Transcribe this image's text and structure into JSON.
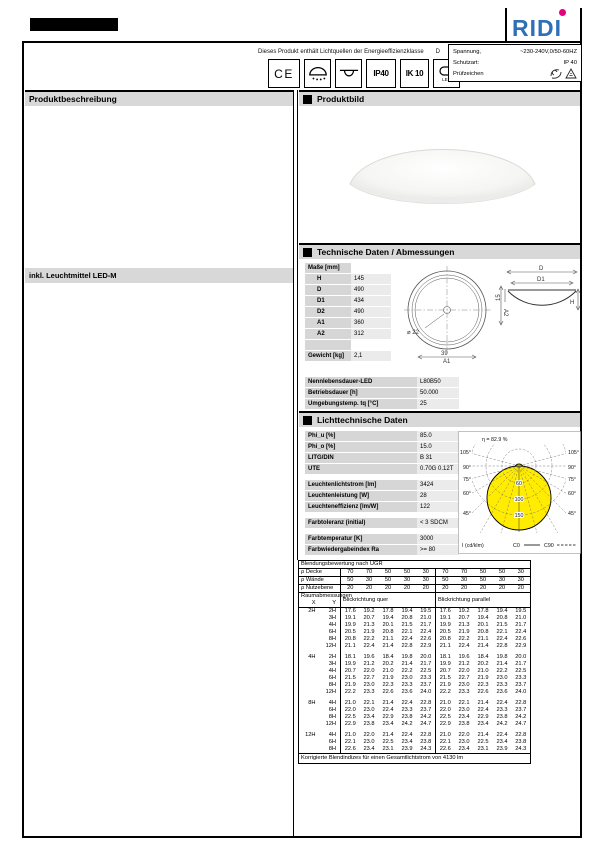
{
  "colors": {
    "logo_blue": "#2e6fb7",
    "logo_magenta": "#e5007d",
    "section_bar_gray": "#d8d8d8",
    "label_cell_gray": "#d6d6d6",
    "value_cell_gray": "#ebebeb",
    "curve_yellow": "#ffec00"
  },
  "logo": {
    "part1": "RID",
    "part2": "I"
  },
  "header": {
    "energy_note": "Dieses Produkt enthält Lichtquellen der Energieeffizienzklasse",
    "energy_class": "D",
    "badges": {
      "ce": "CE",
      "ip": "IP40",
      "ik": "IK 10",
      "led": "LED"
    },
    "specs": {
      "spannung_label": "Spannung,",
      "spannung_value": "~230-240V,0/50-60HZ",
      "schutzart_label": "Schutzart:",
      "schutzart_value": "IP 40",
      "pruef_label": "Prüfzeichen"
    }
  },
  "produkt": {
    "beschreibung_title": "Produktbeschreibung",
    "bild_title": "Produktbild",
    "leuchtmittel_note": "inkl. Leuchtmittel LED-M"
  },
  "tech": {
    "title": "Technische Daten / Abmessungen",
    "rows": [
      {
        "label": "Maße [mm]",
        "value": "",
        "novalue": true
      },
      {
        "label": "H",
        "value": "145",
        "indent": true
      },
      {
        "label": "D",
        "value": "490",
        "indent": true
      },
      {
        "label": "D1",
        "value": "434",
        "indent": true
      },
      {
        "label": "D2",
        "value": "490",
        "indent": true
      },
      {
        "label": "A1",
        "value": "360",
        "indent": true
      },
      {
        "label": "A2",
        "value": "312",
        "indent": true
      },
      {
        "label": "",
        "value": "",
        "novalue": true
      },
      {
        "label": "Gewicht [kg]",
        "value": "2,1"
      }
    ]
  },
  "drawing": {
    "dia": "⌀ 22",
    "w39": "39",
    "a1": "A1",
    "a2": "A2",
    "d": "D",
    "d1": "D1",
    "s15": "15",
    "h": "H"
  },
  "life": {
    "rows": [
      {
        "label": "Nennlebensdauer-LED",
        "value": "L80B50"
      },
      {
        "label": "Betriebsdauer [h]",
        "value": "50.000"
      },
      {
        "label": "Umgebungstemp. tq [°C]",
        "value": "25"
      }
    ]
  },
  "photometric": {
    "title": "Lichttechnische Daten",
    "rows": [
      {
        "label": "Phi_u [%]",
        "value": "85.0"
      },
      {
        "label": "Phi_o [%]",
        "value": "15.0"
      },
      {
        "label": "LITG/DIN",
        "value": "B 31"
      },
      {
        "label": "UTE",
        "value": "0.70G 0.12T"
      },
      {
        "gap": true
      },
      {
        "label": "Leuchtenlichtstrom [lm]",
        "value": "3424"
      },
      {
        "label": "Leuchtenleistung [W]",
        "value": "28"
      },
      {
        "label": "Leuchteneffizienz [lm/W]",
        "value": "122"
      },
      {
        "gap": true
      },
      {
        "label": "Farbtoleranz (initial)",
        "value": "< 3 SDCM"
      },
      {
        "gap": true
      },
      {
        "label": "Farbtemperatur [K]",
        "value": "3000"
      },
      {
        "label": "Farbwiedergabeindex Ra",
        "value": ">= 80"
      }
    ]
  },
  "polar": {
    "efficiency": "η = 82.9 %",
    "angle_labels": [
      "105°",
      "90°",
      "75°",
      "60°",
      "45°"
    ],
    "ring_labels": [
      "60",
      "100",
      "150"
    ],
    "axis_label": "I (cd/klm)",
    "legend_c0": "C0",
    "legend_c90": "C90"
  },
  "ugr": {
    "title": "Blendungsbewertung nach UGR",
    "rho_rows": [
      {
        "label": "ρ Decke",
        "values": [
          "70",
          "70",
          "50",
          "50",
          "30",
          "70",
          "70",
          "50",
          "50",
          "30"
        ]
      },
      {
        "label": "ρ Wände",
        "values": [
          "50",
          "30",
          "50",
          "30",
          "30",
          "50",
          "30",
          "50",
          "30",
          "30"
        ]
      },
      {
        "label": "ρ Nutzebene",
        "values": [
          "20",
          "20",
          "20",
          "20",
          "20",
          "20",
          "20",
          "20",
          "20",
          "20"
        ]
      }
    ],
    "room_header": "Raumabmessungen",
    "x_label": "X",
    "y_label": "Y",
    "quer_header": "Blickrichtung quer",
    "parallel_header": "Blickrichtung parallel",
    "groups": [
      {
        "x": "2H",
        "rows": [
          {
            "y": "2H",
            "quer": [
              "17.6",
              "19.2",
              "17.8",
              "19.4",
              "19.5"
            ],
            "par": [
              "17.6",
              "19.2",
              "17.8",
              "19.4",
              "19.5"
            ]
          },
          {
            "y": "3H",
            "quer": [
              "19.1",
              "20.7",
              "19.4",
              "20.8",
              "21.0"
            ],
            "par": [
              "19.1",
              "20.7",
              "19.4",
              "20.8",
              "21.0"
            ]
          },
          {
            "y": "4H",
            "quer": [
              "19.9",
              "21.3",
              "20.1",
              "21.5",
              "21.7"
            ],
            "par": [
              "19.9",
              "21.3",
              "20.1",
              "21.5",
              "21.7"
            ]
          },
          {
            "y": "6H",
            "quer": [
              "20.5",
              "21.9",
              "20.8",
              "22.1",
              "22.4"
            ],
            "par": [
              "20.5",
              "21.9",
              "20.8",
              "22.1",
              "22.4"
            ]
          },
          {
            "y": "8H",
            "quer": [
              "20.8",
              "22.2",
              "21.1",
              "22.4",
              "22.6"
            ],
            "par": [
              "20.8",
              "22.2",
              "21.1",
              "22.4",
              "22.6"
            ]
          },
          {
            "y": "12H",
            "quer": [
              "21.1",
              "22.4",
              "21.4",
              "22.8",
              "22.9"
            ],
            "par": [
              "21.1",
              "22.4",
              "21.4",
              "22.8",
              "22.9"
            ]
          }
        ]
      },
      {
        "x": "4H",
        "rows": [
          {
            "y": "2H",
            "quer": [
              "18.1",
              "19.6",
              "18.4",
              "19.8",
              "20.0"
            ],
            "par": [
              "18.1",
              "19.6",
              "18.4",
              "19.8",
              "20.0"
            ]
          },
          {
            "y": "3H",
            "quer": [
              "19.9",
              "21.2",
              "20.2",
              "21.4",
              "21.7"
            ],
            "par": [
              "19.9",
              "21.2",
              "20.2",
              "21.4",
              "21.7"
            ]
          },
          {
            "y": "4H",
            "quer": [
              "20.7",
              "22.0",
              "21.0",
              "22.2",
              "22.5"
            ],
            "par": [
              "20.7",
              "22.0",
              "21.0",
              "22.2",
              "22.5"
            ]
          },
          {
            "y": "6H",
            "quer": [
              "21.5",
              "22.7",
              "21.9",
              "23.0",
              "23.3"
            ],
            "par": [
              "21.5",
              "22.7",
              "21.9",
              "23.0",
              "23.3"
            ]
          },
          {
            "y": "8H",
            "quer": [
              "21.9",
              "23.0",
              "22.3",
              "23.3",
              "23.7"
            ],
            "par": [
              "21.9",
              "23.0",
              "22.3",
              "23.3",
              "23.7"
            ]
          },
          {
            "y": "12H",
            "quer": [
              "22.2",
              "23.3",
              "22.6",
              "23.6",
              "24.0"
            ],
            "par": [
              "22.2",
              "23.3",
              "22.6",
              "23.6",
              "24.0"
            ]
          }
        ]
      },
      {
        "x": "8H",
        "rows": [
          {
            "y": "4H",
            "quer": [
              "21.0",
              "22.1",
              "21.4",
              "22.4",
              "22.8"
            ],
            "par": [
              "21.0",
              "22.1",
              "21.4",
              "22.4",
              "22.8"
            ]
          },
          {
            "y": "6H",
            "quer": [
              "22.0",
              "23.0",
              "22.4",
              "23.3",
              "23.7"
            ],
            "par": [
              "22.0",
              "23.0",
              "22.4",
              "23.3",
              "23.7"
            ]
          },
          {
            "y": "8H",
            "quer": [
              "22.5",
              "23.4",
              "22.9",
              "23.8",
              "24.2"
            ],
            "par": [
              "22.5",
              "23.4",
              "22.9",
              "23.8",
              "24.2"
            ]
          },
          {
            "y": "12H",
            "quer": [
              "22.9",
              "23.8",
              "23.4",
              "24.2",
              "24.7"
            ],
            "par": [
              "22.9",
              "23.8",
              "23.4",
              "24.2",
              "24.7"
            ]
          }
        ]
      },
      {
        "x": "12H",
        "rows": [
          {
            "y": "4H",
            "quer": [
              "21.0",
              "22.0",
              "21.4",
              "22.4",
              "22.8"
            ],
            "par": [
              "21.0",
              "22.0",
              "21.4",
              "22.4",
              "22.8"
            ]
          },
          {
            "y": "6H",
            "quer": [
              "22.1",
              "23.0",
              "22.5",
              "23.4",
              "23.8"
            ],
            "par": [
              "22.1",
              "23.0",
              "22.5",
              "23.4",
              "23.8"
            ]
          },
          {
            "y": "8H",
            "quer": [
              "22.6",
              "23.4",
              "23.1",
              "23.9",
              "24.3"
            ],
            "par": [
              "22.6",
              "23.4",
              "23.1",
              "23.9",
              "24.3"
            ]
          }
        ]
      }
    ],
    "footer": "Korrigierte Blendindizes für einen Gesamtlichtstrom von 4130 lm"
  }
}
